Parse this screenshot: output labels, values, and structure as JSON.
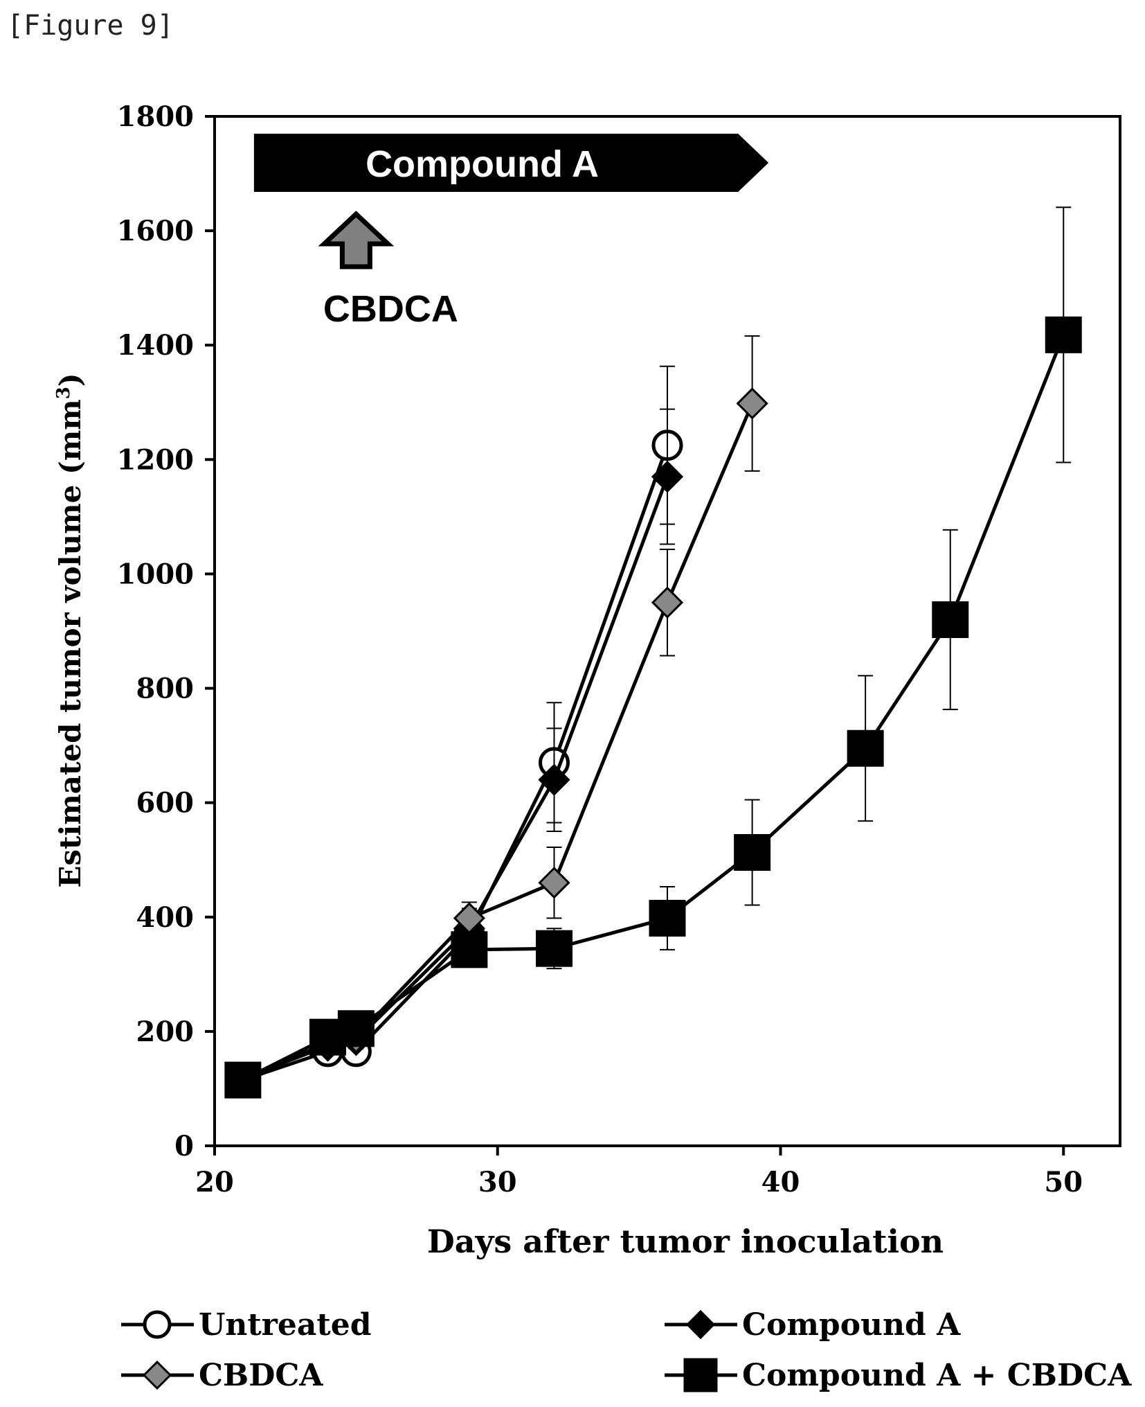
{
  "figure_label": "[Figure 9]",
  "chart_data": {
    "type": "line",
    "title": "",
    "xlabel": "Days after tumor inoculation",
    "ylabel": "Estimated tumor volume (mm",
    "ylabel_sup": "3",
    "ylabel_tail": ")",
    "xlim": [
      20,
      52
    ],
    "ylim": [
      0,
      1800
    ],
    "x_ticks": [
      20,
      30,
      40,
      50
    ],
    "y_ticks": [
      0,
      200,
      400,
      600,
      800,
      1000,
      1200,
      1400,
      1600,
      1800
    ],
    "grid": false,
    "legend_placement": "bottom",
    "annotations": {
      "treatment_bar": {
        "label": "Compound A",
        "x_start": 21,
        "x_end": 38.5
      },
      "dose_arrow": {
        "label": "CBDCA",
        "x": 25,
        "color": "#808080"
      }
    },
    "series": [
      {
        "name": "Untreated",
        "marker": "circle-open",
        "color": "#000000",
        "fill": "#ffffff",
        "x": [
          21,
          24,
          25,
          29,
          32,
          36
        ],
        "y": [
          115,
          165,
          165,
          370,
          670,
          1225
        ],
        "err": [
          10,
          12,
          15,
          35,
          105,
          138
        ]
      },
      {
        "name": "Compound A",
        "marker": "diamond",
        "color": "#000000",
        "fill": "#000000",
        "x": [
          21,
          24,
          25,
          29,
          32,
          36
        ],
        "y": [
          118,
          175,
          185,
          380,
          640,
          1170
        ],
        "err": [
          10,
          12,
          15,
          35,
          90,
          118
        ]
      },
      {
        "name": "CBDCA",
        "marker": "diamond",
        "color": "#000000",
        "fill": "#888888",
        "x": [
          21,
          24,
          25,
          29,
          32,
          36,
          39
        ],
        "y": [
          118,
          180,
          190,
          398,
          460,
          950,
          1298
        ],
        "err": [
          10,
          12,
          15,
          28,
          62,
          93,
          118
        ]
      },
      {
        "name": "Compound A + CBDCA",
        "marker": "square",
        "color": "#000000",
        "fill": "#000000",
        "x": [
          21,
          24,
          25,
          29,
          32,
          36,
          39,
          43,
          46,
          50
        ],
        "y": [
          115,
          190,
          205,
          343,
          345,
          398,
          513,
          695,
          920,
          1418
        ],
        "err": [
          10,
          15,
          15,
          30,
          35,
          55,
          92,
          127,
          157,
          223
        ]
      }
    ]
  }
}
